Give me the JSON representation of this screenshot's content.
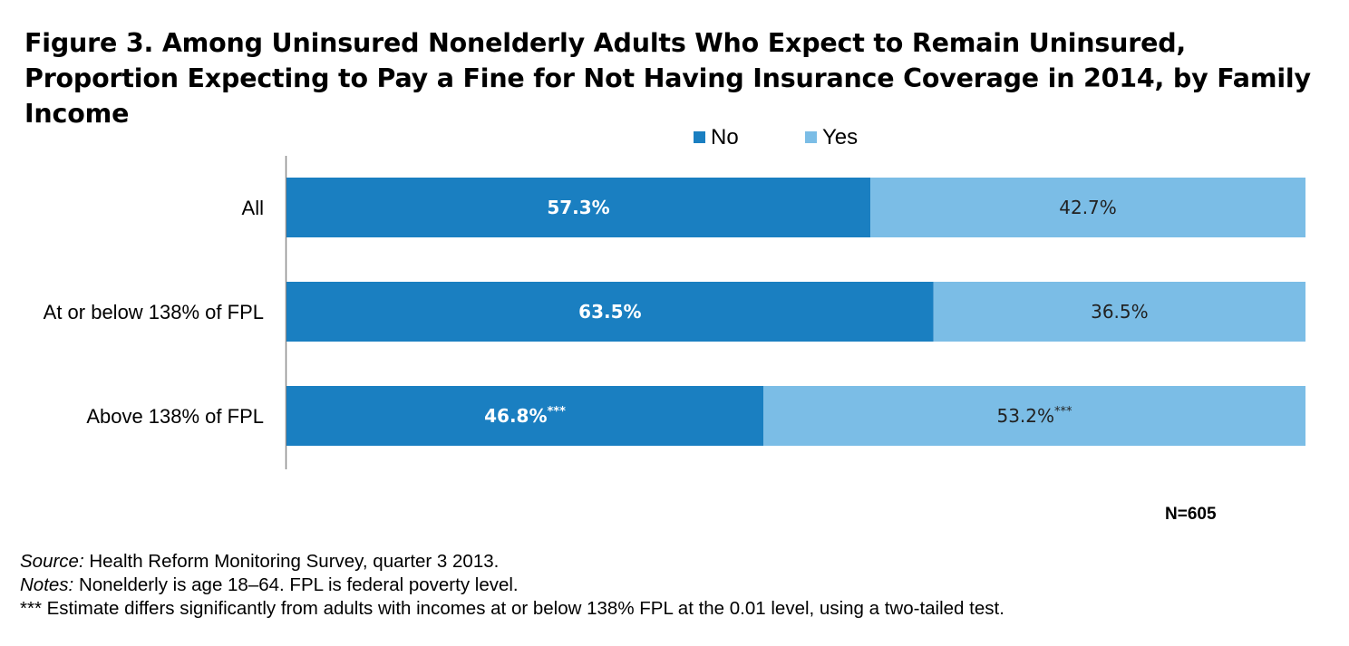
{
  "chart_data": {
    "type": "bar",
    "orientation": "horizontal",
    "stacked": true,
    "title": "Figure 3. Among Uninsured Nonelderly Adults Who Expect to Remain Uninsured, Proportion Expecting to Pay a Fine for Not Having Insurance Coverage in 2014, by Family Income",
    "categories": [
      "All",
      "At or below 138% of FPL",
      "Above 138% of FPL"
    ],
    "series": [
      {
        "name": "No",
        "color": "#1a7fc1",
        "values": [
          57.3,
          63.5,
          46.8
        ],
        "labels": [
          "57.3%",
          "63.5%",
          "46.8%***"
        ]
      },
      {
        "name": "Yes",
        "color": "#7bbde6",
        "values": [
          42.7,
          36.5,
          53.2
        ],
        "labels": [
          "42.7%",
          "36.5%",
          "53.2%***"
        ]
      }
    ],
    "xlim": [
      0,
      100
    ],
    "grid": false,
    "legend_position": "top-center"
  },
  "sample_note": "N=605",
  "footnotes": {
    "source_label": "Source:",
    "source_text": " Health Reform Monitoring Survey, quarter 3 2013.",
    "notes_label": "Notes:",
    "notes_text": " Nonelderly is age 18–64. FPL is federal poverty level.",
    "significance": "*** Estimate differs significantly from adults with incomes at or below 138% FPL at the  0.01 level, using a two-tailed test."
  }
}
